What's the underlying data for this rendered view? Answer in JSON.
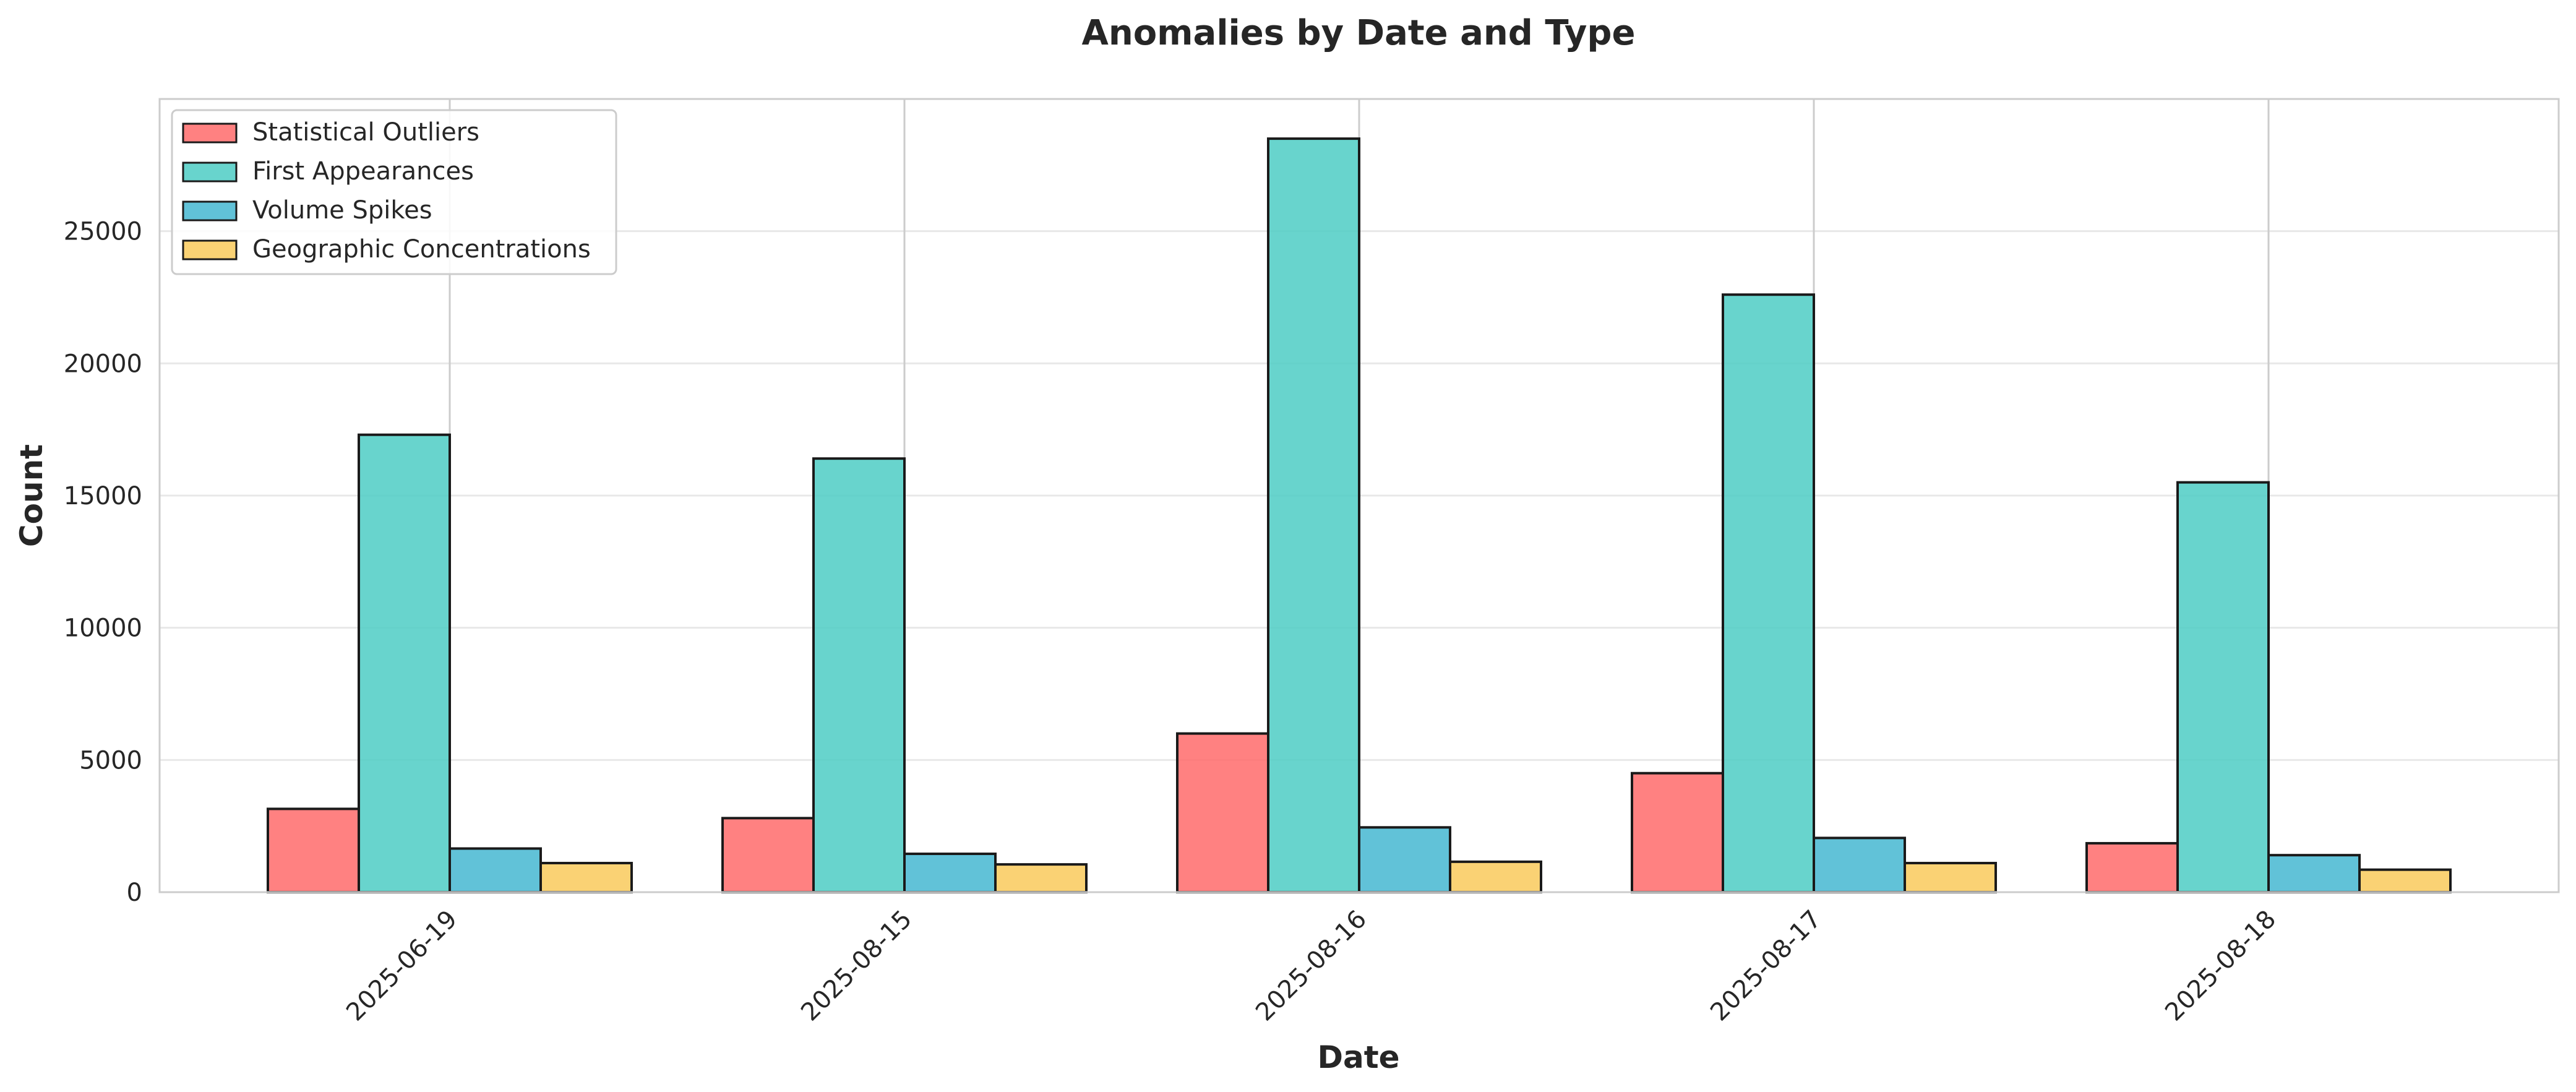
{
  "chart_data": {
    "type": "bar",
    "title": "Anomalies by Date and Type",
    "xlabel": "Date",
    "ylabel": "Count",
    "categories": [
      "2025-06-19",
      "2025-08-15",
      "2025-08-16",
      "2025-08-17",
      "2025-08-18"
    ],
    "series": [
      {
        "name": "Statistical Outliers",
        "color": "#ff6b6b",
        "values": [
          3150,
          2800,
          6000,
          4500,
          1850
        ]
      },
      {
        "name": "First Appearances",
        "color": "#4ecdc4",
        "values": [
          17300,
          16400,
          28500,
          22600,
          15500
        ]
      },
      {
        "name": "Volume Spikes",
        "color": "#45b7d1",
        "values": [
          1650,
          1450,
          2450,
          2050,
          1400
        ]
      },
      {
        "name": "Geographic Concentrations",
        "color": "#f9ca5c",
        "values": [
          1100,
          1050,
          1150,
          1100,
          850
        ]
      }
    ],
    "ylim": [
      0,
      30000
    ],
    "yticks": [
      0,
      5000,
      10000,
      15000,
      20000,
      25000
    ],
    "grid": true,
    "legend_position": "top-left"
  }
}
